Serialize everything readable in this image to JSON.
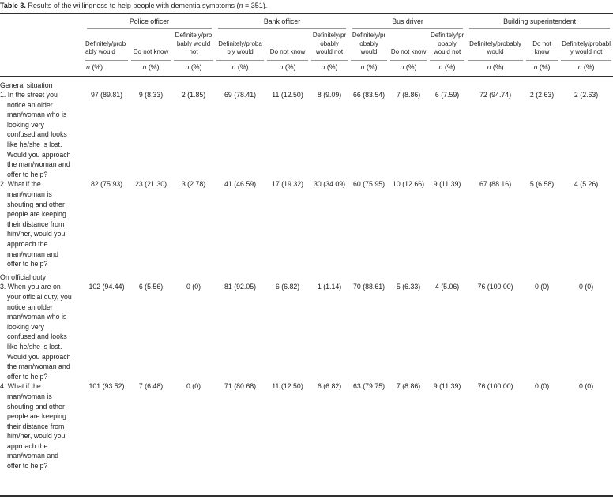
{
  "title": {
    "bold": "Table 3.",
    "before_n": " Results of the willingness to help people with dementia symptoms (",
    "n": "n",
    "after_n": " = 351)."
  },
  "colors": {
    "text": "#1d1d1d",
    "rule_dark": "#2f2f2f",
    "rule_gray": "#969696",
    "background": "#ffffff"
  },
  "table": {
    "groups": [
      {
        "label": "Police officer"
      },
      {
        "label": "Bank officer"
      },
      {
        "label": "Bus driver"
      },
      {
        "label": "Building superintendent"
      }
    ],
    "sub_labels": [
      "Definitely/probably would",
      "Do not know",
      "Definitely/probably would not"
    ],
    "count_label": "n",
    "percent_label": "(%)",
    "sections": [
      {
        "label": "General situation",
        "rows": [
          {
            "question": "1. In the street you notice an older man/woman who is looking very confused and looks like he/she is lost. Would you approach the man/woman and offer to help?",
            "values": [
              "97 (89.81)",
              "9 (8.33)",
              "2 (1.85)",
              "69 (78.41)",
              "11 (12.50)",
              "8 (9.09)",
              "66 (83.54)",
              "7 (8.86)",
              "6 (7.59)",
              "72 (94.74)",
              "2 (2.63)",
              "2 (2.63)"
            ]
          },
          {
            "question": "2. What if the man/woman is shouting and other people are keeping their distance from him/her, would you approach the man/woman and offer to help?",
            "values": [
              "82 (75.93)",
              "23 (21.30)",
              "3 (2.78)",
              "41 (46.59)",
              "17 (19.32)",
              "30 (34.09)",
              "60 (75.95)",
              "10 (12.66)",
              "9 (11.39)",
              "67 (88.16)",
              "5 (6.58)",
              "4 (5.26)"
            ]
          }
        ]
      },
      {
        "label": "On official duty",
        "rows": [
          {
            "question": "3. When you are on your official duty, you notice an older man/woman who is looking very confused and looks like he/she is lost. Would you approach the man/woman and offer to help?",
            "values": [
              "102 (94.44)",
              "6 (5.56)",
              "0 (0)",
              "81 (92.05)",
              "6 (6.82)",
              "1 (1.14)",
              "70 (88.61)",
              "5 (6.33)",
              "4 (5.06)",
              "76 (100.00)",
              "0 (0)",
              "0 (0)"
            ]
          },
          {
            "question": "4. What if the man/woman is shouting and other people are keeping their distance from him/her, would you approach the man/woman and offer to help?",
            "values": [
              "101 (93.52)",
              "7 (6.48)",
              "0 (0)",
              "71 (80.68)",
              "11 (12.50)",
              "6 (6.82)",
              "63 (79.75)",
              "7 (8.86)",
              "9 (11.39)",
              "76 (100.00)",
              "0 (0)",
              "0 (0)"
            ]
          }
        ]
      }
    ]
  }
}
